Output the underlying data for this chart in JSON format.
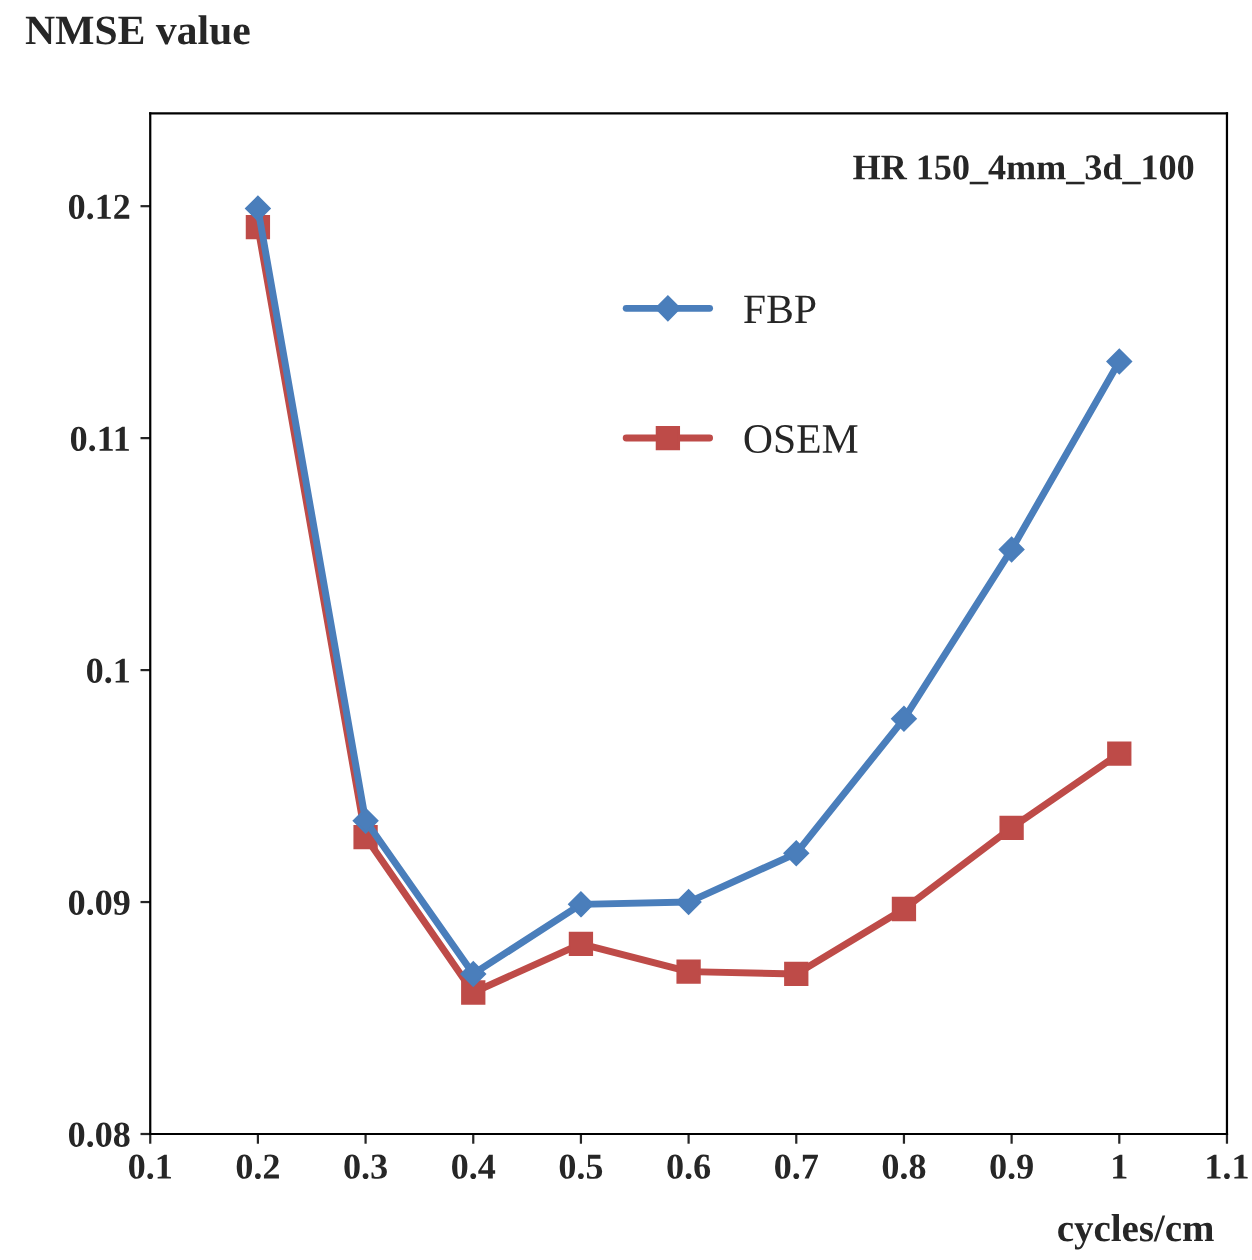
{
  "chart_data": {
    "type": "line",
    "ylabel": "NMSE value",
    "xlabel": "cycles/cm",
    "annotations": [
      "HR 150_4mm_3d_100"
    ],
    "x": [
      0.2,
      0.3,
      0.4,
      0.5,
      0.6,
      0.7,
      0.8,
      0.9,
      1
    ],
    "series": [
      {
        "name": "FBP",
        "color": "#4a7ebb",
        "marker": "diamond",
        "values": [
          0.1199,
          0.0935,
          0.0869,
          0.0899,
          0.09,
          0.0921,
          0.0979,
          0.1052,
          0.1133
        ]
      },
      {
        "name": "OSEM",
        "color": "#be4b48",
        "marker": "square",
        "values": [
          0.1191,
          0.0928,
          0.0861,
          0.0882,
          0.087,
          0.0869,
          0.0897,
          0.0932,
          0.0964
        ]
      }
    ],
    "xlim": [
      0.1,
      1.1
    ],
    "xticks": [
      0.1,
      0.2,
      0.3,
      0.4,
      0.5,
      0.6,
      0.7,
      0.8,
      0.9,
      1,
      1.1
    ],
    "ylim": [
      0.08,
      0.124
    ],
    "yticks": [
      0.08,
      0.09,
      0.1,
      0.11,
      0.12
    ],
    "grid": false,
    "legend": "top",
    "line_style": "solid"
  }
}
